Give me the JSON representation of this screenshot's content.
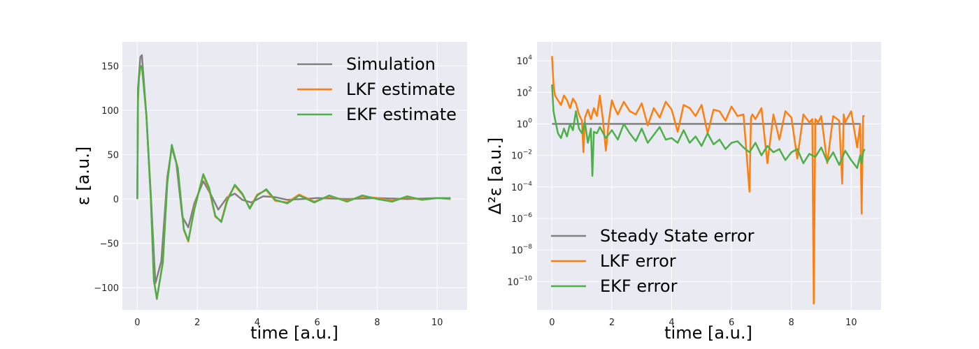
{
  "chart_data": [
    {
      "type": "line",
      "xlabel": "time [a.u.]",
      "ylabel": "ε [a.u.]",
      "xlim": [
        -0.5,
        11.0
      ],
      "ylim": [
        -125,
        177
      ],
      "xticks": [
        0,
        2,
        4,
        6,
        8,
        10
      ],
      "yticks": [
        -100,
        -50,
        0,
        50,
        100,
        150
      ],
      "xtick_labels": [
        "0",
        "2",
        "4",
        "6",
        "8",
        "10"
      ],
      "ytick_labels": [
        "−100",
        "−50",
        "0",
        "50",
        "100",
        "150"
      ],
      "grid": true,
      "legend_position": "top-right",
      "series": [
        {
          "name": "Simulation",
          "color": "#808080",
          "x": [
            0,
            0.02,
            0.1,
            0.15,
            0.3,
            0.45,
            0.6,
            0.8,
            1.0,
            1.15,
            1.3,
            1.5,
            1.7,
            1.9,
            2.2,
            2.45,
            2.7,
            3.0,
            3.25,
            3.5,
            3.8,
            4.2,
            4.6,
            5.0,
            5.5,
            6.0,
            7.0,
            8.0,
            9.0,
            10.0,
            10.45
          ],
          "values": [
            0,
            125,
            160,
            162,
            95,
            5,
            -95,
            -70,
            25,
            58,
            40,
            -20,
            -32,
            -5,
            20,
            5,
            -12,
            2,
            6,
            -1,
            -4,
            3,
            2,
            -1,
            0,
            1,
            0,
            1,
            0,
            1,
            0
          ]
        },
        {
          "name": "LKF estimate",
          "color": "#ff7f0e",
          "x": [
            0,
            0.02,
            0.05,
            0.1,
            0.15,
            0.3,
            0.45,
            0.55,
            0.65,
            0.85,
            1.0,
            1.15,
            1.35,
            1.55,
            1.7,
            1.9,
            2.2,
            2.4,
            2.6,
            2.8,
            3.0,
            3.25,
            3.5,
            3.75,
            4.0,
            4.3,
            4.6,
            5.0,
            5.4,
            5.9,
            6.4,
            7.0,
            7.5,
            8.0,
            8.5,
            9.0,
            9.5,
            10.0,
            10.45
          ],
          "values": [
            0,
            110,
            135,
            148,
            150,
            95,
            0,
            -90,
            -113,
            -70,
            20,
            60,
            35,
            -35,
            -48,
            -10,
            27,
            10,
            -20,
            -25,
            0,
            15,
            5,
            -10,
            5,
            10,
            -2,
            -4,
            5,
            -3,
            3,
            -2,
            3,
            1,
            -2,
            2,
            -1,
            1,
            0
          ]
        },
        {
          "name": "EKF estimate",
          "color": "#4daf4a",
          "x": [
            0,
            0.02,
            0.05,
            0.1,
            0.15,
            0.3,
            0.45,
            0.55,
            0.65,
            0.85,
            1.0,
            1.15,
            1.35,
            1.55,
            1.7,
            1.9,
            2.2,
            2.4,
            2.6,
            2.8,
            3.0,
            3.25,
            3.5,
            3.75,
            4.0,
            4.3,
            4.6,
            5.0,
            5.4,
            5.9,
            6.4,
            7.0,
            7.5,
            8.0,
            8.5,
            9.0,
            9.5,
            10.0,
            10.45
          ],
          "values": [
            0,
            112,
            136,
            149,
            150,
            94,
            0,
            -92,
            -112,
            -72,
            18,
            61,
            34,
            -34,
            -47,
            -12,
            28,
            12,
            -19,
            -26,
            -2,
            16,
            6,
            -11,
            4,
            11,
            -1,
            -5,
            4,
            -4,
            4,
            -3,
            4,
            0,
            -3,
            3,
            -1,
            1,
            1
          ]
        }
      ]
    },
    {
      "type": "line",
      "xlabel": "time [a.u.]",
      "ylabel": "Δ²ε [a.u.]",
      "yscale": "log",
      "xlim": [
        -0.5,
        11.0
      ],
      "ylim_exponent": [
        -11.8,
        5.2
      ],
      "xticks": [
        0,
        2,
        4,
        6,
        8,
        10
      ],
      "xtick_labels": [
        "0",
        "2",
        "4",
        "6",
        "8",
        "10"
      ],
      "ytick_labels": [
        {
          "base": "10",
          "exp": "4"
        },
        {
          "base": "10",
          "exp": "2"
        },
        {
          "base": "10",
          "exp": "0"
        },
        {
          "base": "10",
          "exp": "−2"
        },
        {
          "base": "10",
          "exp": "−4"
        },
        {
          "base": "10",
          "exp": "−6"
        },
        {
          "base": "10",
          "exp": "−8"
        },
        {
          "base": "10",
          "exp": "−10"
        }
      ],
      "ytick_exponents": [
        4,
        2,
        0,
        -2,
        -4,
        -6,
        -8,
        -10
      ],
      "grid": true,
      "legend_position": "bottom-left",
      "series": [
        {
          "name": "Steady State error",
          "color": "#808080",
          "x": [
            0,
            10.3
          ],
          "log10_values": [
            0,
            0
          ]
        },
        {
          "name": "LKF error",
          "color": "#ff7f0e",
          "x": [
            0,
            0.05,
            0.1,
            0.2,
            0.3,
            0.4,
            0.5,
            0.6,
            0.7,
            0.8,
            0.9,
            1.0,
            1.05,
            1.1,
            1.2,
            1.3,
            1.4,
            1.5,
            1.6,
            1.7,
            1.8,
            1.9,
            2.0,
            2.1,
            2.2,
            2.4,
            2.6,
            2.8,
            3.0,
            3.2,
            3.4,
            3.6,
            3.8,
            4.0,
            4.2,
            4.4,
            4.6,
            4.8,
            5.0,
            5.2,
            5.4,
            5.6,
            5.8,
            6.0,
            6.2,
            6.4,
            6.6,
            6.65,
            6.7,
            6.8,
            7.0,
            7.2,
            7.4,
            7.6,
            7.8,
            8.0,
            8.2,
            8.4,
            8.6,
            8.7,
            8.75,
            8.8,
            8.9,
            9.0,
            9.2,
            9.4,
            9.6,
            9.7,
            9.75,
            9.8,
            10.0,
            10.2,
            10.3,
            10.35,
            10.4,
            10.45
          ],
          "log10_values": [
            4.3,
            2.5,
            1.8,
            1.5,
            1.2,
            1.8,
            1.5,
            1.0,
            1.6,
            1.3,
            0.6,
            0.2,
            -1.8,
            0.4,
            0.9,
            0.3,
            1.0,
            0.5,
            1.8,
            0.3,
            -1.7,
            0.2,
            1.5,
            1.0,
            0.6,
            1.4,
            0.8,
            0.6,
            1.3,
            -0.1,
            1.0,
            0.4,
            1.4,
            0.9,
            -0.5,
            1.2,
            1.0,
            0.5,
            1.2,
            -0.6,
            0.9,
            0.8,
            0.2,
            1.1,
            0.5,
            0.6,
            -4.3,
            0.4,
            0.6,
            0.3,
            1.0,
            -2.5,
            0.6,
            -1.0,
            0.8,
            0.4,
            -2.2,
            0.6,
            0.1,
            0.3,
            -11.4,
            0.3,
            0.1,
            0.5,
            -2.5,
            0.5,
            0.2,
            -3.8,
            0.6,
            0.1,
            0.8,
            -1.5,
            0.0,
            -5.7,
            0.5,
            0.5
          ]
        },
        {
          "name": "EKF error",
          "color": "#4daf4a",
          "x": [
            0,
            0.05,
            0.1,
            0.2,
            0.3,
            0.4,
            0.5,
            0.6,
            0.7,
            0.8,
            0.9,
            1.0,
            1.1,
            1.2,
            1.3,
            1.35,
            1.4,
            1.5,
            1.6,
            1.8,
            2.0,
            2.2,
            2.4,
            2.6,
            2.8,
            3.0,
            3.2,
            3.4,
            3.6,
            3.8,
            4.0,
            4.2,
            4.4,
            4.6,
            4.8,
            5.0,
            5.2,
            5.4,
            5.6,
            5.8,
            6.0,
            6.2,
            6.4,
            6.6,
            6.8,
            7.0,
            7.2,
            7.4,
            7.6,
            7.8,
            8.0,
            8.2,
            8.4,
            8.6,
            8.8,
            9.0,
            9.2,
            9.4,
            9.6,
            9.8,
            10.0,
            10.2,
            10.3,
            10.35,
            10.4,
            10.45
          ],
          "log10_values": [
            2.5,
            0.8,
            0.3,
            -0.6,
            -0.9,
            -0.3,
            -0.8,
            0.0,
            -0.4,
            0.8,
            -0.3,
            -0.6,
            0.1,
            -1.2,
            -0.3,
            -3.3,
            -0.5,
            -0.6,
            -0.2,
            -0.9,
            -0.4,
            -1.0,
            0.0,
            -0.6,
            -1.1,
            -0.3,
            -1.2,
            -0.7,
            -0.2,
            -1.0,
            -0.9,
            -1.2,
            -0.4,
            -1.2,
            -0.8,
            -1.4,
            -0.6,
            -1.3,
            -1.0,
            -1.6,
            -1.2,
            -1.1,
            -1.5,
            -1.8,
            -1.2,
            -2.0,
            -1.4,
            -1.8,
            -1.6,
            -2.3,
            -1.8,
            -1.6,
            -2.5,
            -1.9,
            -2.1,
            -1.5,
            -2.4,
            -1.8,
            -2.6,
            -1.7,
            -2.3,
            -2.8,
            -2.0,
            -2.5,
            -1.8,
            -1.6
          ]
        }
      ]
    }
  ]
}
